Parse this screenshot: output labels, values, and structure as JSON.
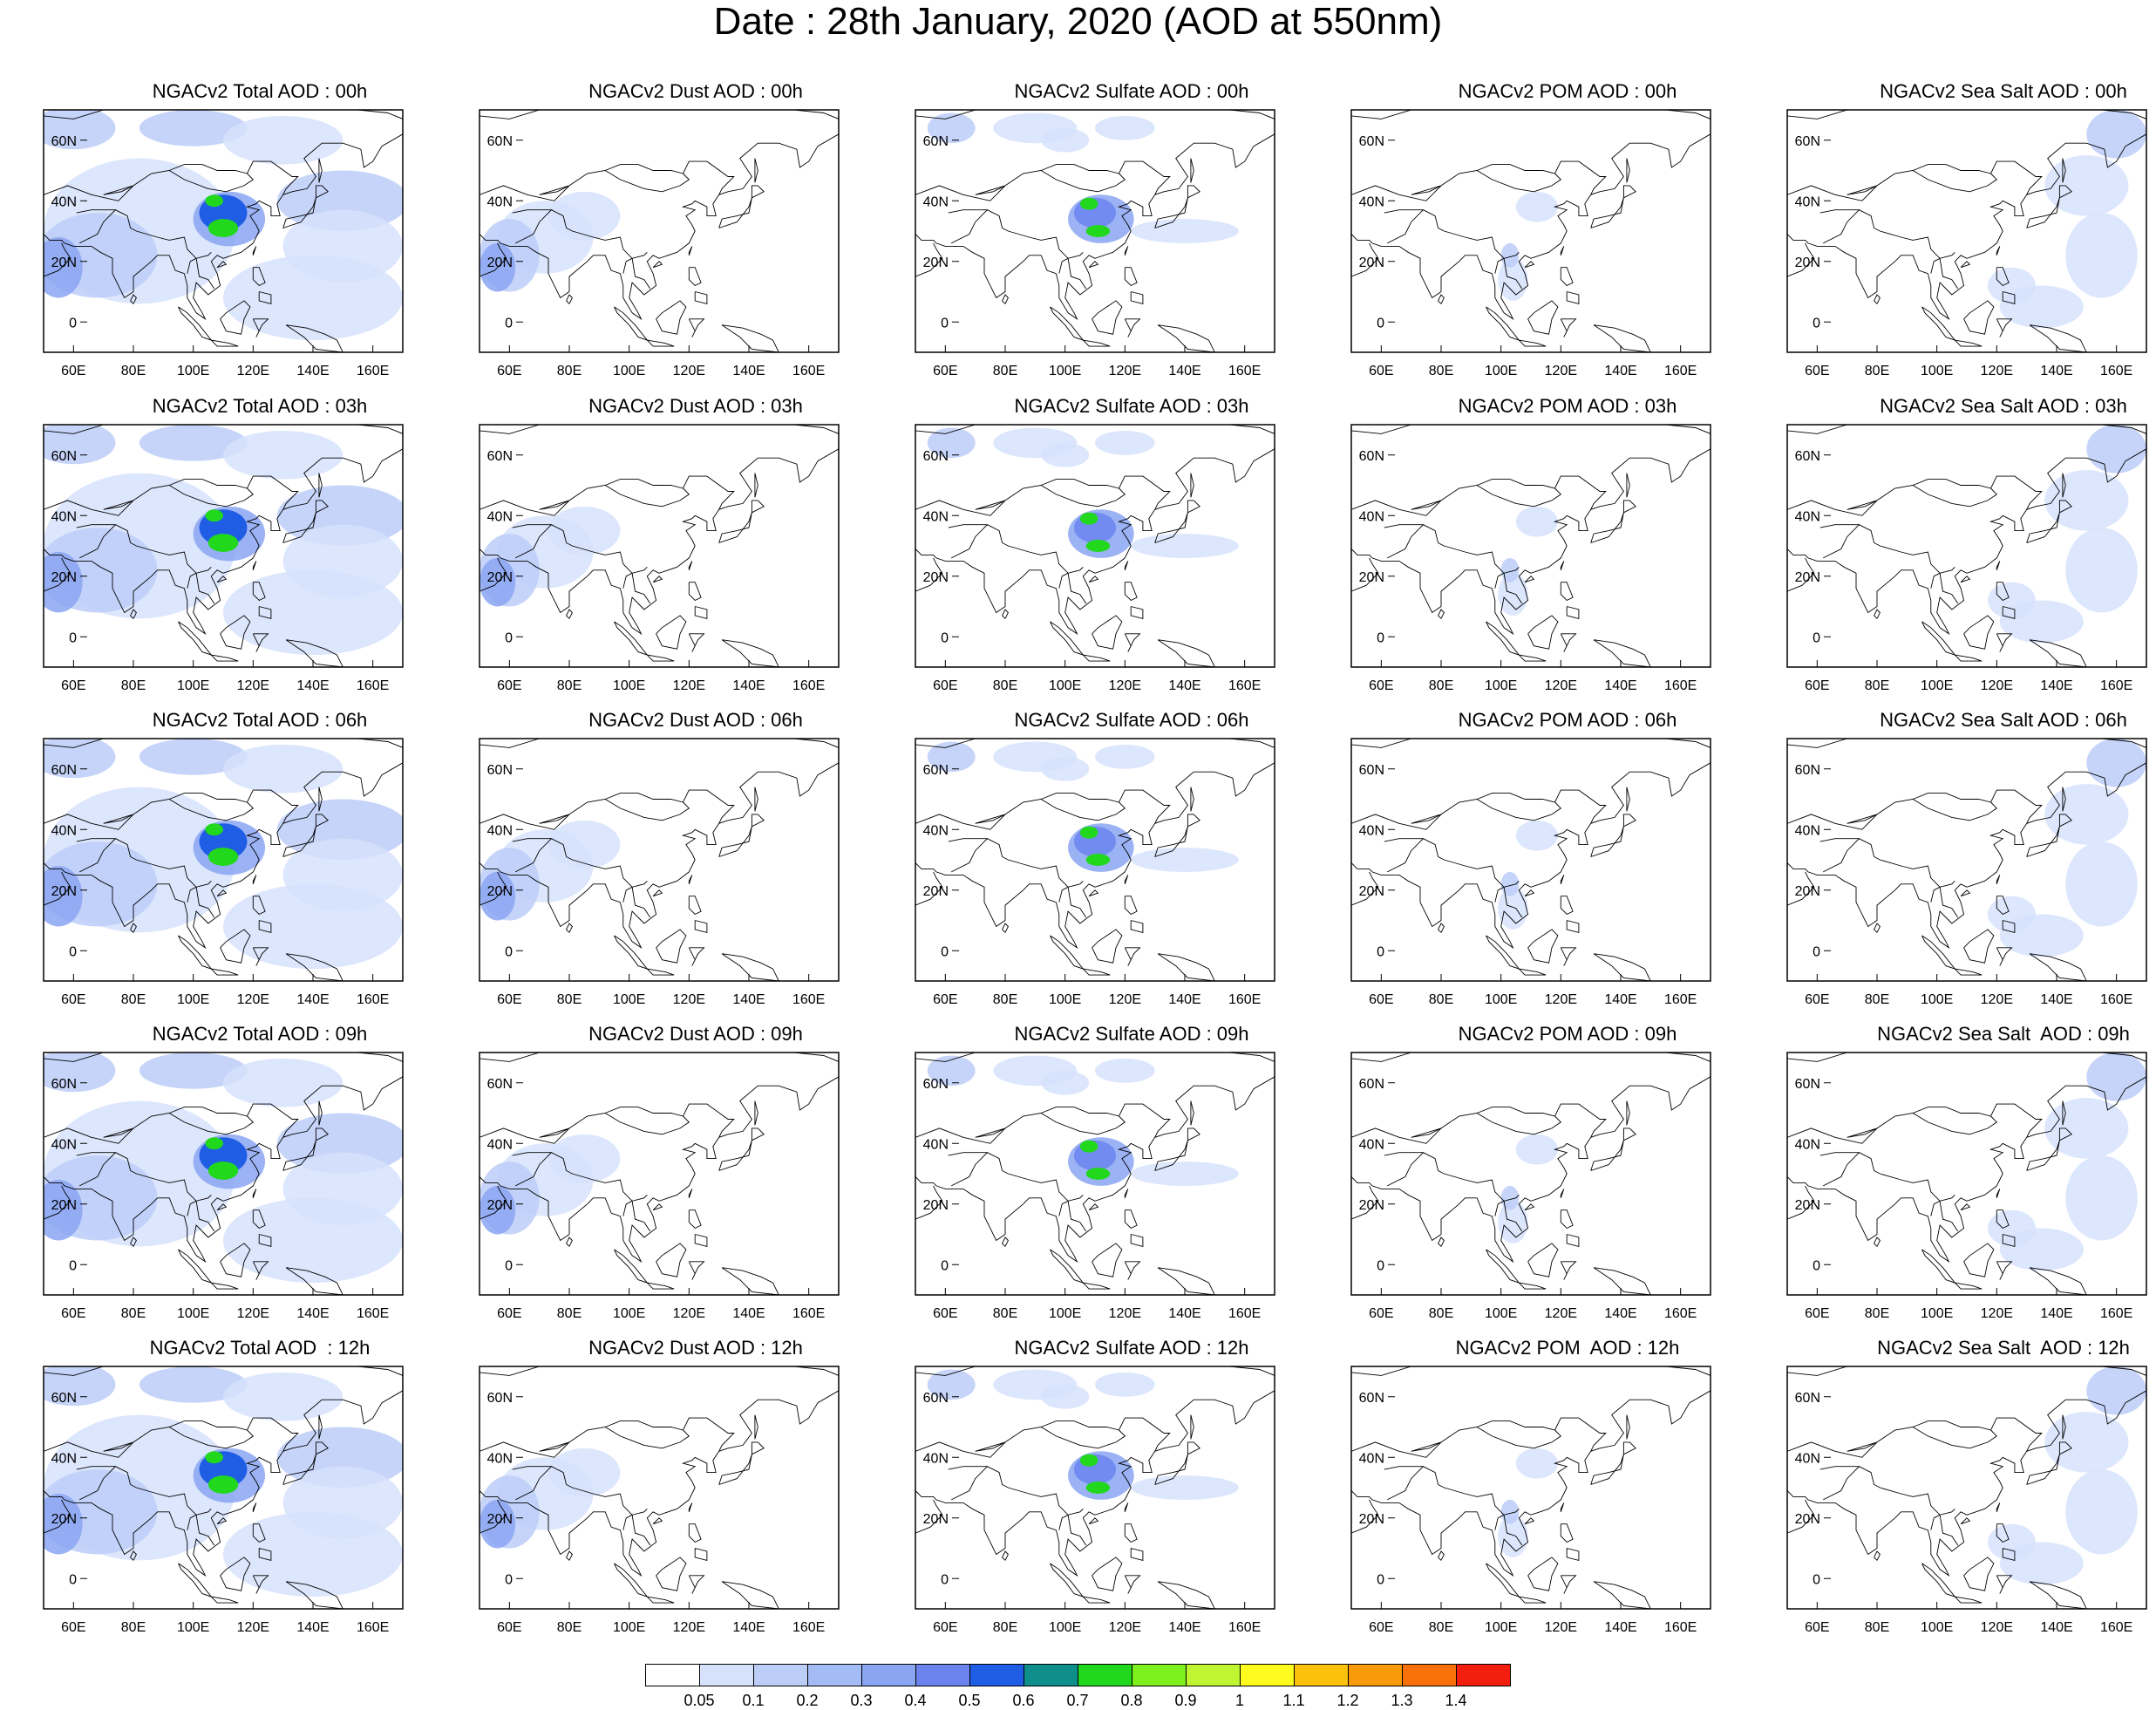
{
  "figure": {
    "title": "Date : 28th January, 2020 (AOD at 550nm)"
  },
  "map": {
    "lat_ticks": [
      "60N",
      "40N",
      "20N",
      "0"
    ],
    "lon_ticks": [
      "60E",
      "80E",
      "100E",
      "120E",
      "140E",
      "160E"
    ],
    "lat_range": [
      -10,
      70
    ],
    "lon_range": [
      50,
      170
    ]
  },
  "panels": [
    {
      "title": "NGACv2 Total AOD : 00h",
      "species": "total",
      "hour": "00h"
    },
    {
      "title": "NGACv2 Dust AOD : 00h",
      "species": "dust",
      "hour": "00h"
    },
    {
      "title": "NGACv2 Sulfate AOD : 00h",
      "species": "sulfate",
      "hour": "00h"
    },
    {
      "title": "NGACv2 POM AOD : 00h",
      "species": "pom",
      "hour": "00h"
    },
    {
      "title": "NGACv2 Sea Salt AOD : 00h",
      "species": "seasalt",
      "hour": "00h"
    },
    {
      "title": "NGACv2 Total AOD : 03h",
      "species": "total",
      "hour": "03h"
    },
    {
      "title": "NGACv2 Dust AOD : 03h",
      "species": "dust",
      "hour": "03h"
    },
    {
      "title": "NGACv2 Sulfate AOD : 03h",
      "species": "sulfate",
      "hour": "03h"
    },
    {
      "title": "NGACv2 POM AOD : 03h",
      "species": "pom",
      "hour": "03h"
    },
    {
      "title": "NGACv2 Sea Salt AOD : 03h",
      "species": "seasalt",
      "hour": "03h"
    },
    {
      "title": "NGACv2 Total AOD : 06h",
      "species": "total",
      "hour": "06h"
    },
    {
      "title": "NGACv2 Dust AOD : 06h",
      "species": "dust",
      "hour": "06h"
    },
    {
      "title": "NGACv2 Sulfate AOD : 06h",
      "species": "sulfate",
      "hour": "06h"
    },
    {
      "title": "NGACv2 POM AOD : 06h",
      "species": "pom",
      "hour": "06h"
    },
    {
      "title": "NGACv2 Sea Salt AOD : 06h",
      "species": "seasalt",
      "hour": "06h"
    },
    {
      "title": "NGACv2 Total AOD : 09h",
      "species": "total",
      "hour": "09h"
    },
    {
      "title": "NGACv2 Dust AOD : 09h",
      "species": "dust",
      "hour": "09h"
    },
    {
      "title": "NGACv2 Sulfate AOD : 09h",
      "species": "sulfate",
      "hour": "09h"
    },
    {
      "title": "NGACv2 POM AOD : 09h",
      "species": "pom",
      "hour": "09h"
    },
    {
      "title": "NGACv2 Sea Salt  AOD : 09h",
      "species": "seasalt",
      "hour": "09h"
    },
    {
      "title": "NGACv2 Total AOD  : 12h",
      "species": "total",
      "hour": "12h"
    },
    {
      "title": "NGACv2 Dust AOD : 12h",
      "species": "dust",
      "hour": "12h"
    },
    {
      "title": "NGACv2 Sulfate AOD : 12h",
      "species": "sulfate",
      "hour": "12h"
    },
    {
      "title": "NGACv2 POM  AOD : 12h",
      "species": "pom",
      "hour": "12h"
    },
    {
      "title": "NGACv2 Sea Salt  AOD : 12h",
      "species": "seasalt",
      "hour": "12h"
    }
  ],
  "colorbar": {
    "labels": [
      "0.05",
      "0.1",
      "0.2",
      "0.3",
      "0.4",
      "0.5",
      "0.6",
      "0.7",
      "0.8",
      "0.9",
      "1",
      "1.1",
      "1.2",
      "1.3",
      "1.4"
    ],
    "colors": [
      "#ffffff",
      "#d6e2fb",
      "#bccdf8",
      "#a4bcf6",
      "#8aa5f2",
      "#6b84ee",
      "#1f5de4",
      "#0e8f8c",
      "#21d81d",
      "#7ef01e",
      "#c0f531",
      "#fefc1e",
      "#fbc10b",
      "#f99a0b",
      "#f7700a",
      "#f41e0f"
    ]
  }
}
